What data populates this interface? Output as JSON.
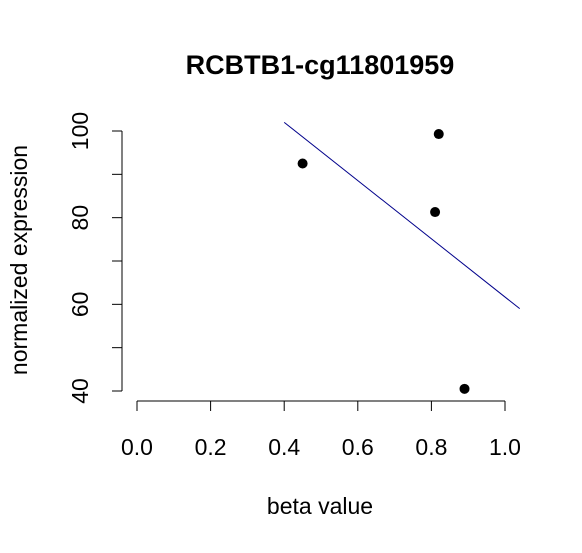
{
  "chart_data": {
    "type": "scatter",
    "title": "RCBTB1-cg11801959",
    "xlabel": "beta value",
    "ylabel": "normalized expression",
    "xlim": [
      0.0,
      1.0
    ],
    "ylim": [
      40,
      100
    ],
    "x_ticks": [
      "0.0",
      "0.2",
      "0.4",
      "0.6",
      "0.8",
      "1.0"
    ],
    "y_ticks": [
      "40",
      "60",
      "80",
      "100"
    ],
    "y_minor_ticks": [
      50,
      70,
      90
    ],
    "points": [
      {
        "x": 0.45,
        "y": 92.5
      },
      {
        "x": 0.82,
        "y": 99.3
      },
      {
        "x": 0.81,
        "y": 81.3
      },
      {
        "x": 0.89,
        "y": 40.5
      }
    ],
    "fit_line": {
      "x": [
        0.4,
        1.04
      ],
      "y": [
        102.0,
        59.0
      ],
      "color": "#00008b"
    },
    "grid": false,
    "legend": "none"
  }
}
